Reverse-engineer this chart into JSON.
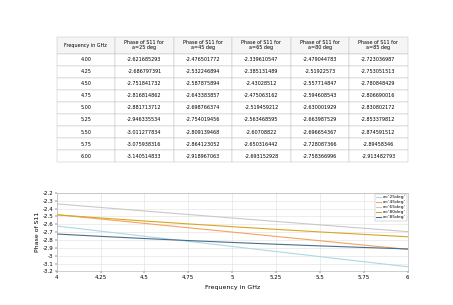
{
  "frequencies": [
    4.0,
    4.25,
    4.5,
    4.75,
    5.0,
    5.25,
    5.5,
    5.75,
    6.0
  ],
  "series_keys": [
    "a=25deg",
    "a=45deg",
    "a=65deg",
    "a=80deg",
    "a=85deg"
  ],
  "series": {
    "a=25deg": {
      "values": [
        -2.621685293,
        -2.686797391,
        -2.751841732,
        -2.816814862,
        -2.881713712,
        -2.946335534,
        -3.011277834,
        -3.075938316,
        -3.140514833
      ],
      "color": "#add8e6",
      "label": "a='25deg'"
    },
    "a=45deg": {
      "values": [
        -2.476501772,
        -2.532246894,
        -2.587875894,
        -2.643383857,
        -2.698766374,
        -2.754019456,
        -2.809139468,
        -2.864123052,
        -2.918967063
      ],
      "color": "#f4a460",
      "label": "a='45deg'"
    },
    "a=65deg": {
      "values": [
        -2.339610547,
        -2.385131489,
        -2.43028512,
        -2.475063162,
        -2.519459212,
        -2.563468595,
        -2.60708822,
        -2.650316442,
        -2.693152928
      ],
      "color": "#c8c8c8",
      "label": "a='65deg'"
    },
    "a=80deg": {
      "values": [
        -2.479044783,
        -2.51922573,
        -2.557714847,
        -2.594608543,
        -2.630001929,
        -2.663987529,
        -2.696654367,
        -2.728087366,
        -2.758366996
      ],
      "color": "#daa520",
      "label": "a='80deg'"
    },
    "a=85deg": {
      "values": [
        -2.723036987,
        -2.753051513,
        -2.780848429,
        -2.806690016,
        -2.830802172,
        -2.853379812,
        -2.874591512,
        -2.89458346,
        -2.913482793
      ],
      "color": "#4a6e8a",
      "label": "a='85deg'"
    }
  },
  "table_col_labels": [
    "Frequency in GHz",
    "Phase of S11 for\na=25 deg",
    "Phase of S11 for\na=45 deg",
    "Phase of S11 for\na=65 deg",
    "Phase of S11 for\na=80 deg",
    "Phase of S11 for\na=85 deg"
  ],
  "xlabel": "Frequency in GHz",
  "ylabel": "Phase of S11",
  "ylim": [
    -3.2,
    -2.2
  ],
  "yticks": [
    -3.2,
    -3.1,
    -3.0,
    -2.9,
    -2.8,
    -2.7,
    -2.6,
    -2.5,
    -2.4,
    -2.3,
    -2.2
  ],
  "xticks": [
    4,
    4.25,
    4.5,
    4.75,
    5,
    5.25,
    5.5,
    5.75,
    6
  ],
  "xtick_labels": [
    "4",
    "4.25",
    "4.5",
    "4.75",
    "5",
    "5.25",
    "5.5",
    "5.75",
    "6"
  ]
}
